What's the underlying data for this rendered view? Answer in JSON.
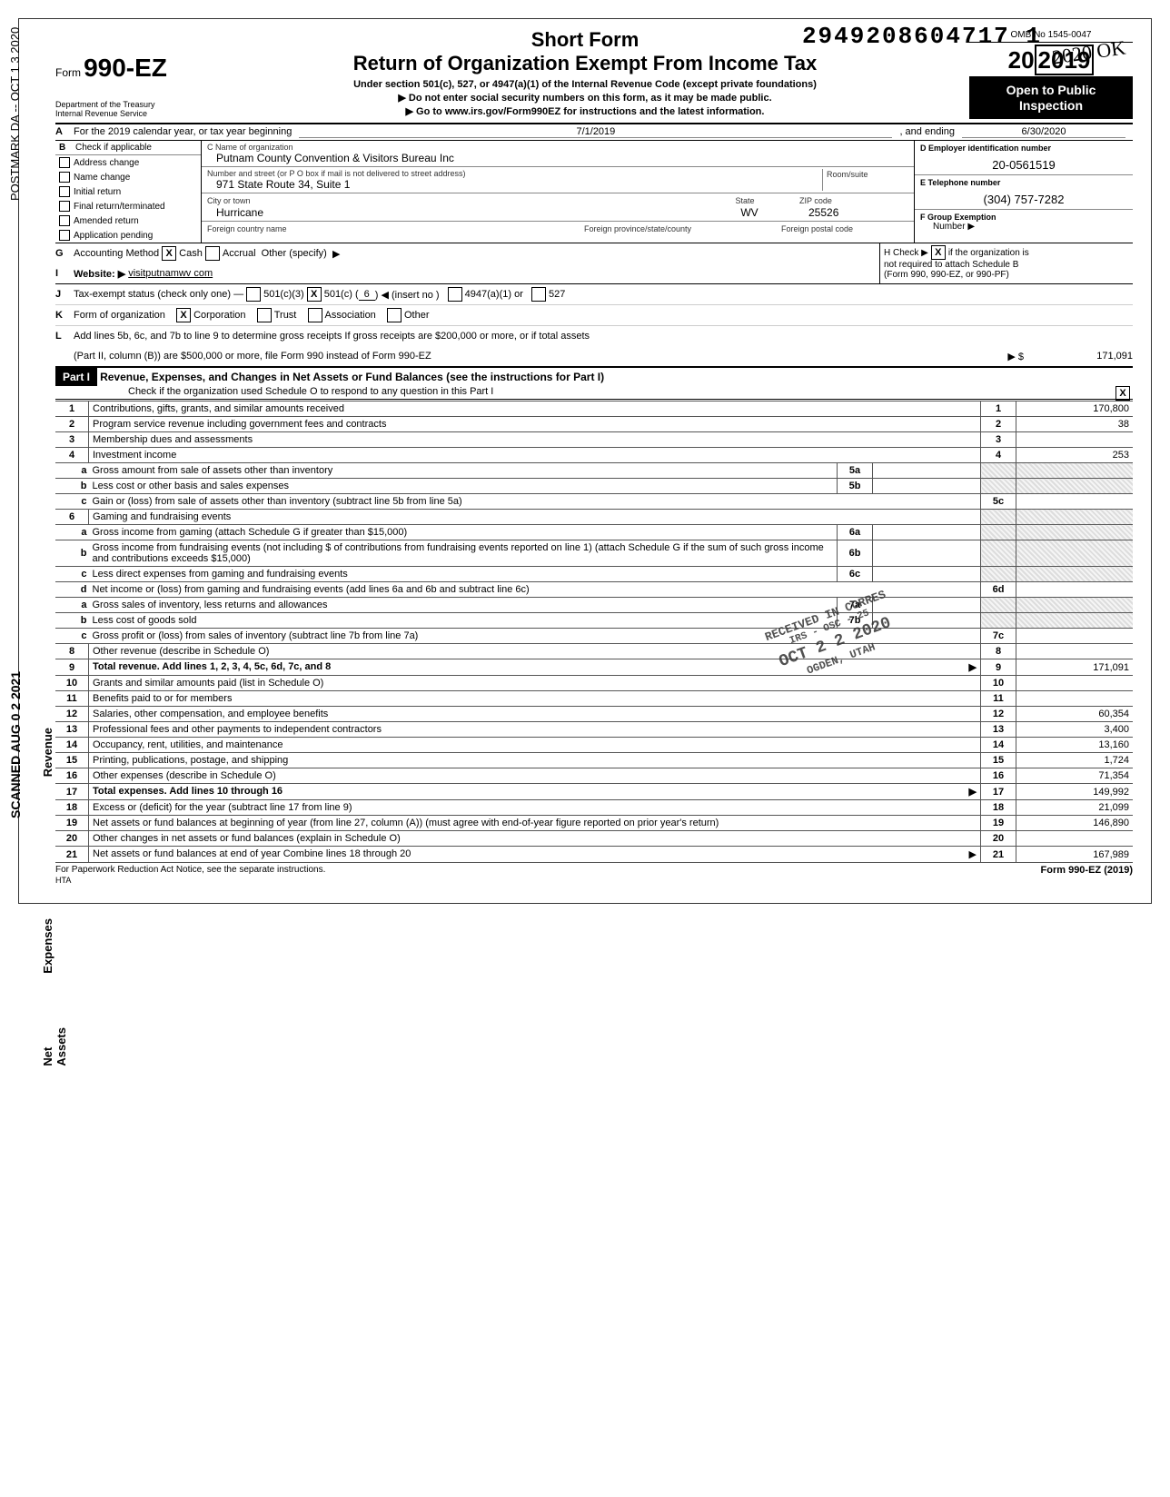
{
  "stamp_number": "2949208604717  1",
  "stamp_year": "2020 OK",
  "side_postmark": "POSTMARK DA -- OCT 1 3 2020",
  "side_scanned": "SCANNED AUG 0 2 2021",
  "form": {
    "prefix": "Form",
    "code": "990-EZ",
    "dept1": "Department of the Treasury",
    "dept2": "Internal Revenue Service",
    "title1": "Short Form",
    "title2": "Return of Organization Exempt From Income Tax",
    "sub1": "Under section 501(c), 527, or 4947(a)(1) of the Internal Revenue Code (except private foundations)",
    "sub2": "▶   Do not enter social security numbers on this form, as it may be made public.",
    "sub3": "▶   Go to www.irs.gov/Form990EZ for instructions and the latest information.",
    "omb": "OMB No  1545-0047",
    "year": "2019",
    "open1": "Open to Public",
    "open2": "Inspection"
  },
  "row_a": {
    "label": "A",
    "text": "For the 2019 calendar year, or tax year beginning",
    "begin": "7/1/2019",
    "mid": ", and ending",
    "end": "6/30/2020"
  },
  "checks": {
    "header_letter": "B",
    "header": "Check if applicable",
    "items": [
      "Address change",
      "Name change",
      "Initial return",
      "Final return/terminated",
      "Amended return",
      "Application pending"
    ]
  },
  "org": {
    "c_label": "C  Name of organization",
    "name": "Putnam County Convention & Visitors Bureau Inc",
    "addr_label": "Number and street (or P O  box if mail is not delivered to street address)",
    "room_label": "Room/suite",
    "addr": "971 State Route 34, Suite 1",
    "city_label": "City or town",
    "state_label": "State",
    "zip_label": "ZIP code",
    "city": "Hurricane",
    "state": "WV",
    "zip": "25526",
    "foreign_country_label": "Foreign country name",
    "foreign_prov_label": "Foreign province/state/county",
    "foreign_postal_label": "Foreign postal code"
  },
  "right": {
    "d_label": "D  Employer identification number",
    "ein": "20-0561519",
    "e_label": "E  Telephone number",
    "phone": "(304) 757-7282",
    "f_label": "F  Group Exemption",
    "f_sub": "Number ▶"
  },
  "g": {
    "letter": "G",
    "label": "Accounting Method",
    "cash": "Cash",
    "accrual": "Accrual",
    "other": "Other (specify)",
    "arrow": "▶"
  },
  "i": {
    "letter": "I",
    "label": "Website: ▶",
    "val": "visitputnamwv com"
  },
  "h": {
    "label": "H  Check ▶",
    "text1": "if the organization is",
    "text2": "not required to attach Schedule B",
    "text3": "(Form 990, 990-EZ, or 990-PF)"
  },
  "j": {
    "letter": "J",
    "label": "Tax-exempt status (check only one) —",
    "opt1": "501(c)(3)",
    "opt2": "501(c) (",
    "opt2_num": "6",
    "opt2_post": ") ◀ (insert no )",
    "opt3": "4947(a)(1) or",
    "opt4": "527"
  },
  "k": {
    "letter": "K",
    "label": "Form of organization",
    "opts": [
      "Corporation",
      "Trust",
      "Association",
      "Other"
    ]
  },
  "l": {
    "letter": "L",
    "text1": "Add lines 5b, 6c, and 7b to line 9 to determine gross receipts  If gross receipts are $200,000 or more, or if total assets",
    "text2": "(Part II, column (B)) are $500,000 or more, file Form 990 instead of Form 990-EZ",
    "arrow": "▶ $",
    "val": "171,091"
  },
  "part1": {
    "tag": "Part I",
    "title": "Revenue, Expenses, and Changes in Net Assets or Fund Balances (see the instructions for Part I)",
    "sub": "Check if the organization used Schedule O to respond to any question in this Part I"
  },
  "side_labels": {
    "revenue": "Revenue",
    "expenses": "Expenses",
    "netassets": "Net Assets"
  },
  "lines": [
    {
      "n": "1",
      "d": "Contributions, gifts, grants, and similar amounts received",
      "rn": "1",
      "rv": "170,800"
    },
    {
      "n": "2",
      "d": "Program service revenue including government fees and contracts",
      "rn": "2",
      "rv": "38"
    },
    {
      "n": "3",
      "d": "Membership dues and assessments",
      "rn": "3",
      "rv": ""
    },
    {
      "n": "4",
      "d": "Investment income",
      "rn": "4",
      "rv": "253"
    },
    {
      "n": "5a",
      "sub": "a",
      "d": "Gross amount from sale of assets other than inventory",
      "mn": "5a",
      "mv": ""
    },
    {
      "n": "5b",
      "sub": "b",
      "d": "Less  cost or other basis and sales expenses",
      "mn": "5b",
      "mv": ""
    },
    {
      "n": "5c",
      "sub": "c",
      "d": "Gain or (loss) from sale of assets other than inventory (subtract line 5b from line 5a)",
      "rn": "5c",
      "rv": ""
    },
    {
      "n": "6",
      "d": "Gaming and fundraising events"
    },
    {
      "n": "6a",
      "sub": "a",
      "d": "Gross income from gaming (attach Schedule G if greater than $15,000)",
      "mn": "6a",
      "mv": ""
    },
    {
      "n": "6b",
      "sub": "b",
      "d": "Gross income from fundraising events (not including    $                 of contributions from fundraising events reported on line 1) (attach Schedule G if the sum of such gross income and contributions exceeds $15,000)",
      "mn": "6b",
      "mv": ""
    },
    {
      "n": "6c",
      "sub": "c",
      "d": "Less  direct expenses from gaming and fundraising events",
      "mn": "6c",
      "mv": ""
    },
    {
      "n": "6d",
      "sub": "d",
      "d": "Net income or (loss) from gaming and fundraising events (add lines 6a and 6b and subtract line 6c)",
      "rn": "6d",
      "rv": ""
    },
    {
      "n": "7a",
      "sub": "a",
      "pre": "7a",
      "d": "Gross sales of inventory, less returns and allowances",
      "mn": "7a",
      "mv": ""
    },
    {
      "n": "7b",
      "sub": "b",
      "d": "Less  cost of goods sold",
      "mn": "7b",
      "mv": ""
    },
    {
      "n": "7c",
      "sub": "c",
      "d": "Gross profit or (loss) from sales of inventory (subtract line 7b from line 7a)",
      "rn": "7c",
      "rv": ""
    },
    {
      "n": "8",
      "d": "Other revenue (describe in Schedule O)",
      "rn": "8",
      "rv": ""
    },
    {
      "n": "9",
      "d": "Total revenue. Add lines 1, 2, 3, 4, 5c, 6d, 7c, and 8",
      "rn": "9",
      "rv": "171,091",
      "bold": true,
      "arrow": true
    },
    {
      "n": "10",
      "d": "Grants and similar amounts paid (list in Schedule O)",
      "rn": "10",
      "rv": ""
    },
    {
      "n": "11",
      "d": "Benefits paid to or for members",
      "rn": "11",
      "rv": ""
    },
    {
      "n": "12",
      "d": "Salaries, other compensation, and employee benefits",
      "rn": "12",
      "rv": "60,354"
    },
    {
      "n": "13",
      "d": "Professional fees and other payments to independent contractors",
      "rn": "13",
      "rv": "3,400"
    },
    {
      "n": "14",
      "d": "Occupancy, rent, utilities, and maintenance",
      "rn": "14",
      "rv": "13,160"
    },
    {
      "n": "15",
      "d": "Printing, publications, postage, and shipping",
      "rn": "15",
      "rv": "1,724"
    },
    {
      "n": "16",
      "d": "Other expenses (describe in Schedule O)",
      "rn": "16",
      "rv": "71,354"
    },
    {
      "n": "17",
      "d": "Total expenses. Add lines 10 through 16",
      "rn": "17",
      "rv": "149,992",
      "bold": true,
      "arrow": true
    },
    {
      "n": "18",
      "d": "Excess or (deficit) for the year (subtract line 17 from line 9)",
      "rn": "18",
      "rv": "21,099"
    },
    {
      "n": "19",
      "d": "Net assets or fund balances at beginning of year (from line 27, column (A)) (must agree with end-of-year figure reported on prior year's return)",
      "rn": "19",
      "rv": "146,890"
    },
    {
      "n": "20",
      "d": "Other changes in net assets or fund balances (explain in Schedule O)",
      "rn": "20",
      "rv": ""
    },
    {
      "n": "21",
      "d": "Net assets or fund balances at end of year  Combine lines 18 through 20",
      "rn": "21",
      "rv": "167,989",
      "arrow": true
    }
  ],
  "received": {
    "l1": "RECEIVED IN CORRES",
    "l2": "IRS - OSC - 25",
    "l3": "OCT 2 2 2020",
    "l4": "OGDEN, UTAH"
  },
  "footer": {
    "left": "For Paperwork Reduction Act Notice, see the separate instructions.",
    "right": "Form 990-EZ (2019)",
    "hta": "HTA"
  }
}
